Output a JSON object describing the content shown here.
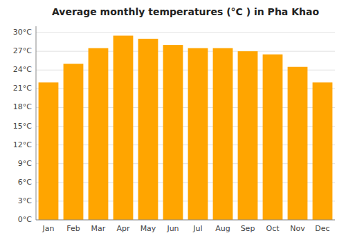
{
  "chart_data": {
    "type": "bar",
    "title": "Average monthly temperatures (°C ) in Pha Khao",
    "categories": [
      "Jan",
      "Feb",
      "Mar",
      "Apr",
      "May",
      "Jun",
      "Jul",
      "Aug",
      "Sep",
      "Oct",
      "Nov",
      "Dec"
    ],
    "values": [
      22.0,
      25.0,
      27.5,
      29.5,
      29.0,
      28.0,
      27.5,
      27.5,
      27.0,
      26.5,
      24.5,
      22.0
    ],
    "color": "#FFA500",
    "ylim": [
      0,
      31
    ],
    "yticks": [
      {
        "value": 0,
        "label": "0°C"
      },
      {
        "value": 3,
        "label": "3°C"
      },
      {
        "value": 6,
        "label": "6°C"
      },
      {
        "value": 9,
        "label": "9°C"
      },
      {
        "value": 12,
        "label": "12°C"
      },
      {
        "value": 15,
        "label": "15°C"
      },
      {
        "value": 18,
        "label": "18°C"
      },
      {
        "value": 21,
        "label": "21°C"
      },
      {
        "value": 24,
        "label": "24°C"
      },
      {
        "value": 27,
        "label": "27°C"
      },
      {
        "value": 30,
        "label": "30°C"
      }
    ],
    "grid": true
  }
}
